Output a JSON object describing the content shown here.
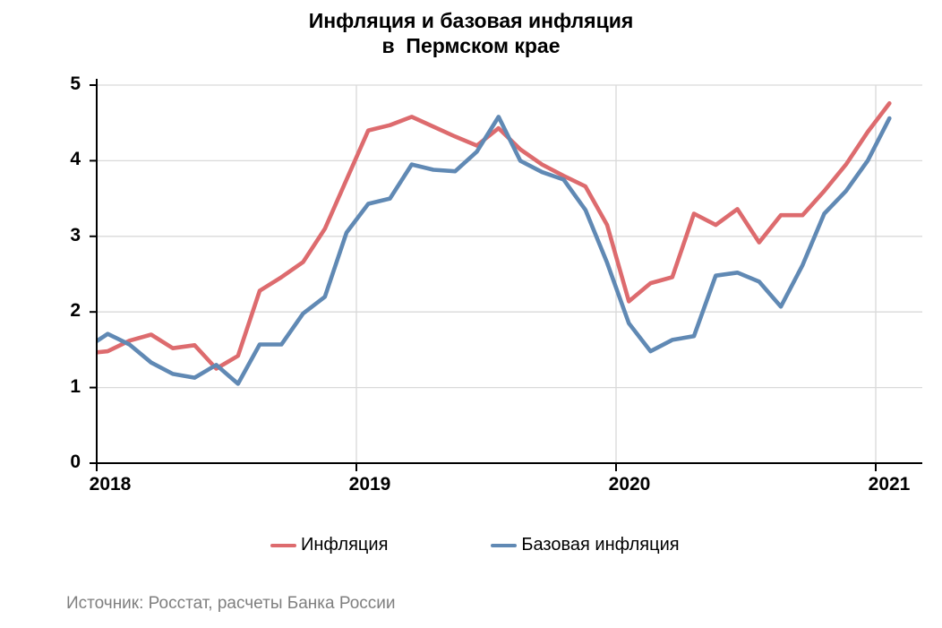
{
  "source": "Источник: Росстат, расчеты Банка России",
  "chart_data": {
    "type": "line",
    "title_lines": [
      "Инфляция и базовая инфляция",
      "в  Пермском крае"
    ],
    "title": "Инфляция и базовая инфляция в Пермском крае",
    "x": [
      "2017-12",
      "2018-01",
      "2018-02",
      "2018-03",
      "2018-04",
      "2018-05",
      "2018-06",
      "2018-07",
      "2018-08",
      "2018-09",
      "2018-10",
      "2018-11",
      "2018-12",
      "2019-01",
      "2019-02",
      "2019-03",
      "2019-04",
      "2019-05",
      "2019-06",
      "2019-07",
      "2019-08",
      "2019-09",
      "2019-10",
      "2019-11",
      "2019-12",
      "2020-01",
      "2020-02",
      "2020-03",
      "2020-04",
      "2020-05",
      "2020-06",
      "2020-07",
      "2020-08",
      "2020-09",
      "2020-10",
      "2020-11",
      "2020-12",
      "2021-01"
    ],
    "series": [
      {
        "name": "Инфляция",
        "color": "#DD6B6E",
        "values": [
          1.45,
          1.48,
          1.62,
          1.7,
          1.52,
          1.56,
          1.25,
          1.42,
          2.28,
          2.46,
          2.66,
          3.1,
          3.75,
          4.4,
          4.47,
          4.58,
          4.45,
          4.32,
          4.2,
          4.43,
          4.15,
          3.95,
          3.8,
          3.66,
          3.15,
          2.14,
          2.38,
          2.46,
          3.3,
          3.15,
          3.36,
          2.92,
          3.28,
          3.28,
          3.6,
          3.95,
          4.38,
          4.76
        ]
      },
      {
        "name": "Базовая инфляция",
        "color": "#6089B4",
        "values": [
          1.52,
          1.71,
          1.57,
          1.33,
          1.18,
          1.13,
          1.3,
          1.05,
          1.57,
          1.57,
          1.98,
          2.2,
          3.05,
          3.43,
          3.5,
          3.95,
          3.88,
          3.86,
          4.12,
          4.58,
          4.0,
          3.85,
          3.75,
          3.35,
          2.65,
          1.85,
          1.48,
          1.63,
          1.68,
          2.48,
          2.52,
          2.4,
          2.07,
          2.62,
          3.3,
          3.6,
          4.0,
          4.56
        ]
      }
    ],
    "y_ticks": [
      0,
      1,
      2,
      3,
      4,
      5
    ],
    "ylim": [
      0,
      5
    ],
    "x_tick_labels": [
      "2018",
      "2019",
      "2020",
      "2021"
    ],
    "grid": "horizontal integer gridlines + vertical year gridlines",
    "legend_position": "bottom",
    "axis_color": "#000000",
    "gridline_color": "#D9D9D9"
  }
}
